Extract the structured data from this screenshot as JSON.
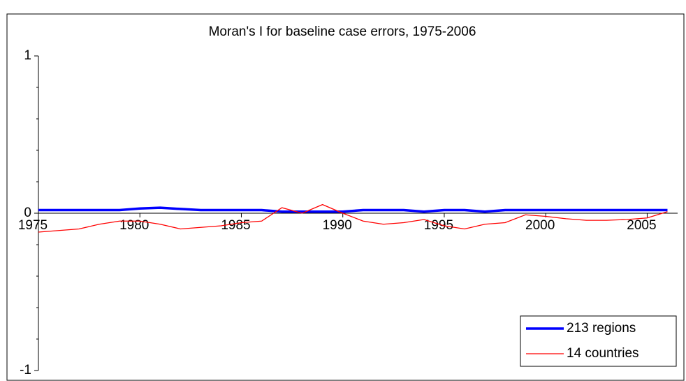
{
  "chart_data": {
    "type": "line",
    "title": "Moran's I for baseline case errors, 1975-2006",
    "x": [
      1975,
      1976,
      1977,
      1978,
      1979,
      1980,
      1981,
      1982,
      1983,
      1984,
      1985,
      1986,
      1987,
      1988,
      1989,
      1990,
      1991,
      1992,
      1993,
      1994,
      1995,
      1996,
      1997,
      1998,
      1999,
      2000,
      2001,
      2002,
      2003,
      2004,
      2005,
      2006
    ],
    "series": [
      {
        "name": "213 regions",
        "color": "#0000ff",
        "width": 3.5,
        "values": [
          0.02,
          0.02,
          0.02,
          0.02,
          0.02,
          0.03,
          0.035,
          0.027,
          0.02,
          0.02,
          0.02,
          0.02,
          0.01,
          0.01,
          0.01,
          0.01,
          0.02,
          0.02,
          0.02,
          0.01,
          0.02,
          0.02,
          0.01,
          0.02,
          0.02,
          0.02,
          0.02,
          0.02,
          0.02,
          0.02,
          0.02,
          0.02
        ]
      },
      {
        "name": "14 countries",
        "color": "#ff0000",
        "width": 1.3,
        "values": [
          -0.12,
          -0.11,
          -0.1,
          -0.07,
          -0.05,
          -0.05,
          -0.07,
          -0.1,
          -0.09,
          -0.08,
          -0.06,
          -0.05,
          0.035,
          0.0,
          0.055,
          0.0,
          -0.05,
          -0.07,
          -0.06,
          -0.04,
          -0.08,
          -0.1,
          -0.07,
          -0.06,
          -0.01,
          -0.02,
          -0.035,
          -0.045,
          -0.045,
          -0.04,
          -0.03,
          0.01
        ]
      }
    ],
    "xlim": [
      1975,
      2006.5
    ],
    "xticks": [
      1975,
      1980,
      1985,
      1990,
      1995,
      2000,
      2005
    ],
    "ylim": [
      -1,
      1
    ],
    "yticks": [
      -1,
      0,
      1
    ],
    "y_minor_ticks": [
      -0.8,
      -0.6,
      -0.4,
      -0.2,
      0.2,
      0.4,
      0.6,
      0.8
    ],
    "grid": false,
    "legend": "lower right"
  }
}
